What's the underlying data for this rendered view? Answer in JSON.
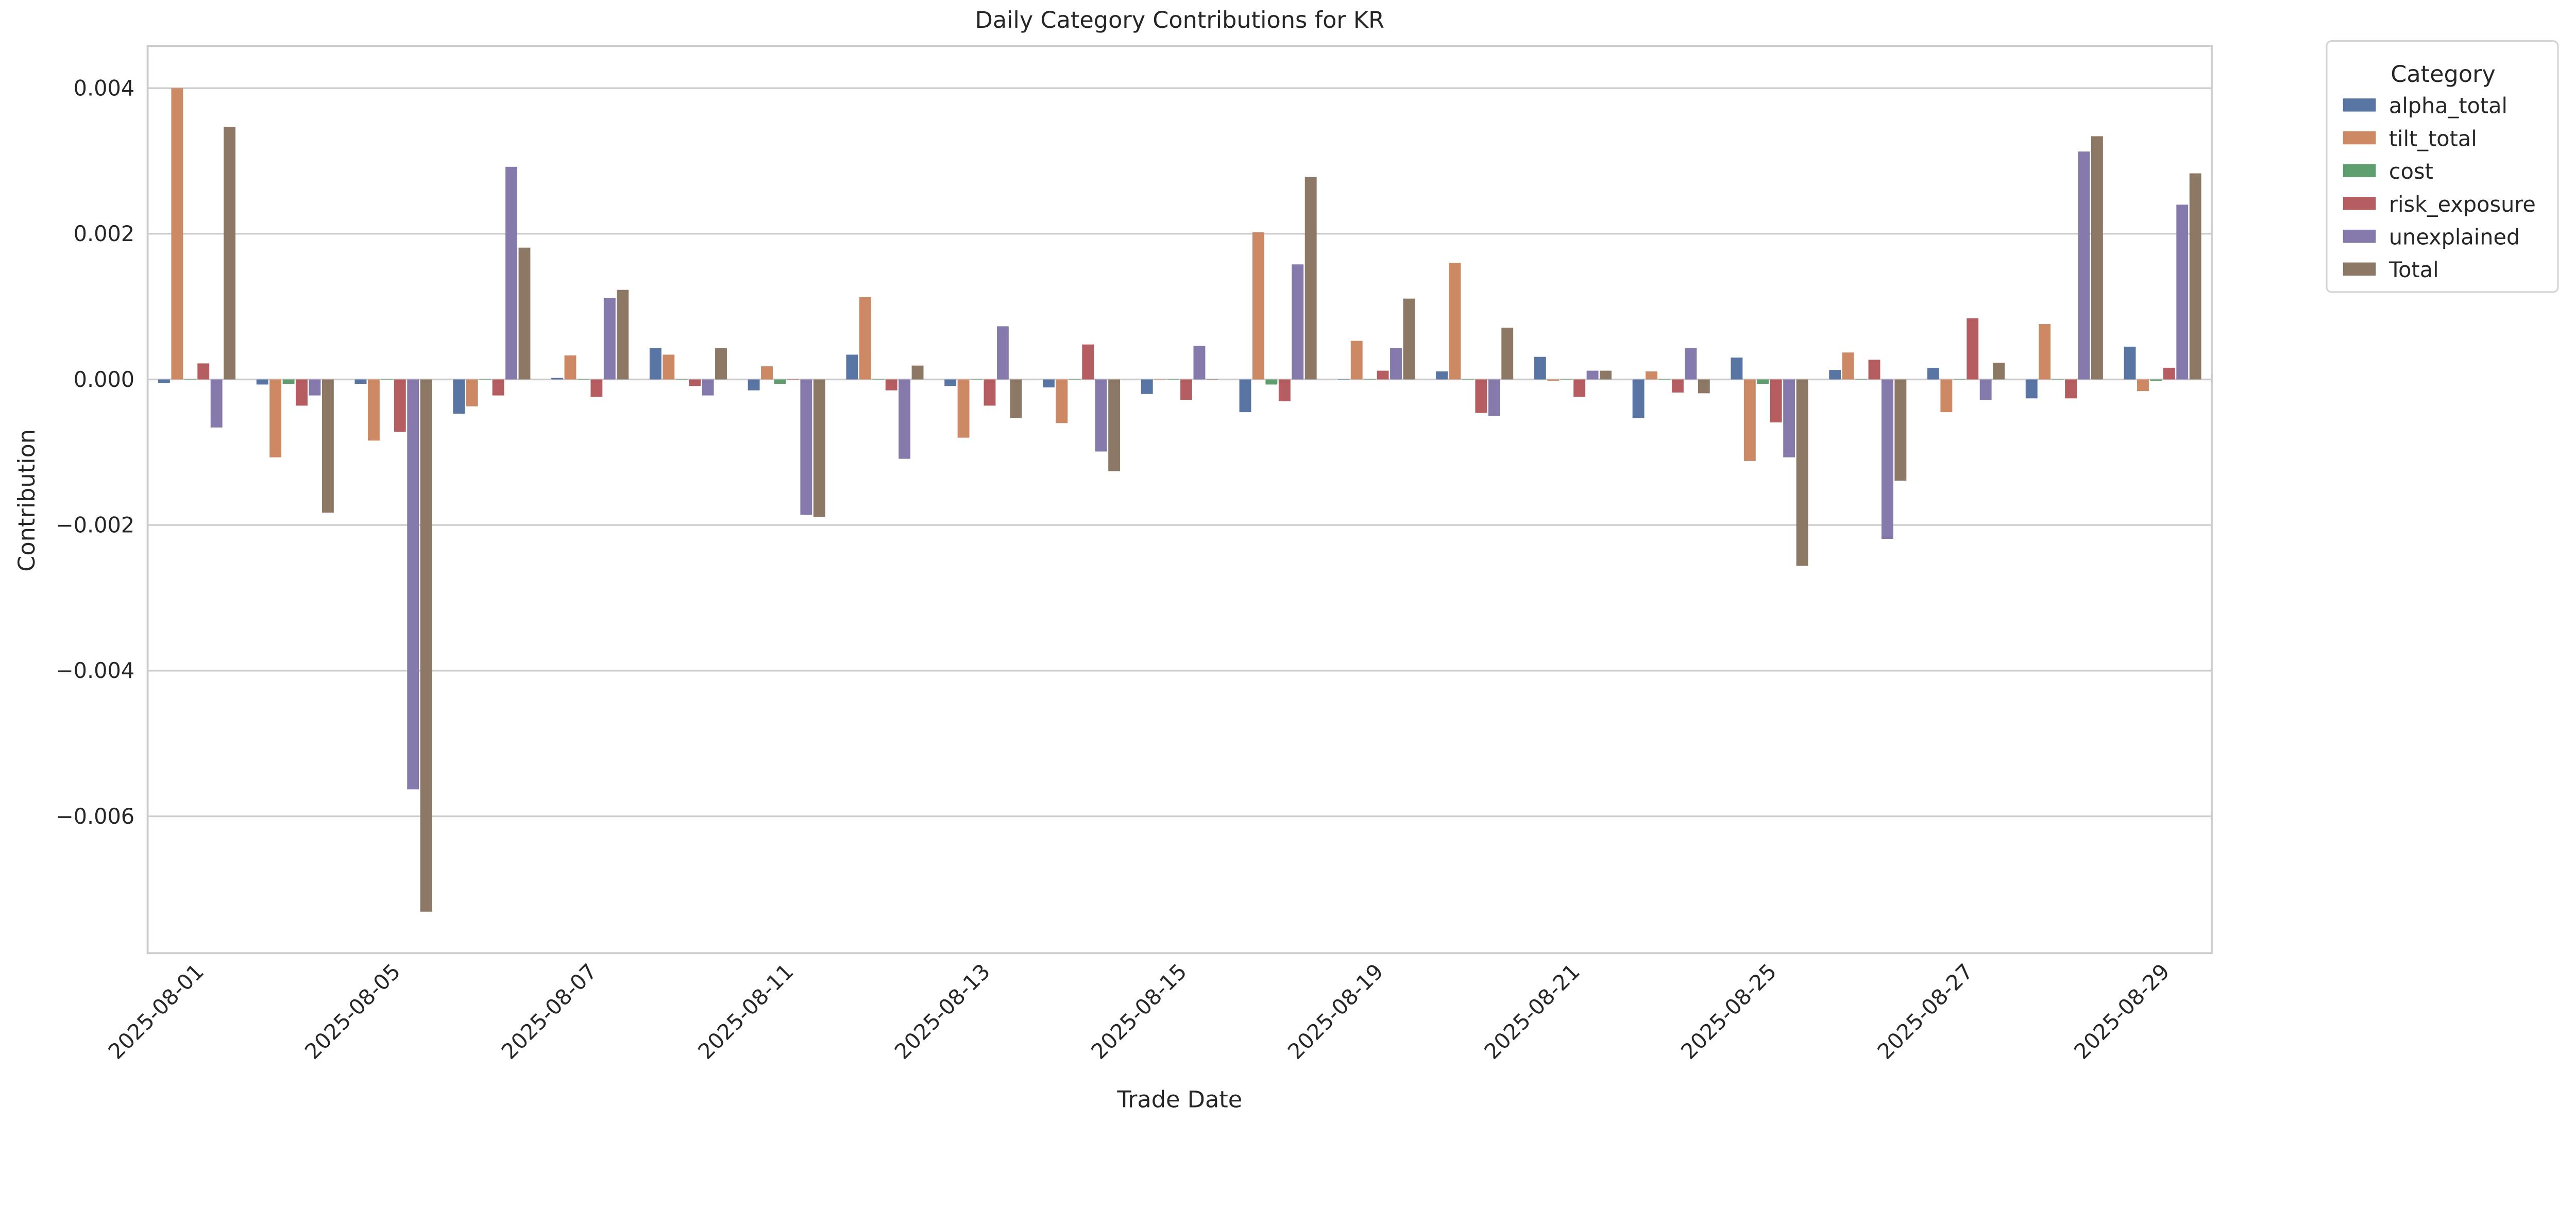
{
  "chart_data": {
    "type": "bar",
    "title": "Daily Category Contributions for KR",
    "xlabel": "Trade Date",
    "ylabel": "Contribution",
    "ylim": [
      -0.00788,
      0.00458
    ],
    "grid": true,
    "legend": {
      "title": "Category",
      "placement": "outside-top-right"
    },
    "categories": [
      "2025-08-01",
      "2025-08-04",
      "2025-08-05",
      "2025-08-06",
      "2025-08-07",
      "2025-08-08",
      "2025-08-11",
      "2025-08-12",
      "2025-08-13",
      "2025-08-14",
      "2025-08-15",
      "2025-08-18",
      "2025-08-19",
      "2025-08-20",
      "2025-08-21",
      "2025-08-22",
      "2025-08-25",
      "2025-08-26",
      "2025-08-27",
      "2025-08-28",
      "2025-08-29"
    ],
    "x_tick_labels": [
      "2025-08-01",
      "2025-08-05",
      "2025-08-07",
      "2025-08-11",
      "2025-08-13",
      "2025-08-15",
      "2025-08-19",
      "2025-08-21",
      "2025-08-25",
      "2025-08-27",
      "2025-08-29"
    ],
    "y_ticks": [
      -0.006,
      -0.004,
      -0.002,
      0.0,
      0.002,
      0.004
    ],
    "y_tick_labels": [
      "−0.006",
      "−0.004",
      "−0.002",
      "0.000",
      "0.002",
      "0.004"
    ],
    "series": [
      {
        "name": "alpha_total",
        "color": "#5975a4",
        "values": [
          -5e-05,
          -7e-05,
          -6e-05,
          -0.00047,
          2e-05,
          0.00043,
          -0.00015,
          0.00034,
          -9e-05,
          -0.00011,
          -0.0002,
          -0.00045,
          0.0,
          0.00011,
          0.00031,
          -0.00053,
          0.0003,
          0.00013,
          0.00016,
          -0.00026,
          0.00045
        ]
      },
      {
        "name": "tilt_total",
        "color": "#cc8963",
        "values": [
          0.004,
          -0.00107,
          -0.00084,
          -0.00037,
          0.00033,
          0.00034,
          0.00018,
          0.00113,
          -0.0008,
          -0.0006,
          0.0,
          0.00202,
          0.00053,
          0.0016,
          -2e-05,
          0.00011,
          -0.00112,
          0.00037,
          -0.00045,
          0.00076,
          -0.00016
        ]
      },
      {
        "name": "cost",
        "color": "#5f9e6e",
        "values": [
          0.0,
          -6e-05,
          0.0,
          0.0,
          0.0,
          0.0,
          -6e-05,
          0.0,
          0.0,
          0.0,
          0.0,
          -7e-05,
          0.0,
          0.0,
          0.0,
          0.0,
          -6e-05,
          0.0,
          0.0,
          0.0,
          -2e-05
        ]
      },
      {
        "name": "risk_exposure",
        "color": "#b55d60",
        "values": [
          0.00022,
          -0.00036,
          -0.00072,
          -0.00022,
          -0.00024,
          -9e-05,
          0.0,
          -0.00015,
          -0.00036,
          0.00048,
          -0.00028,
          -0.0003,
          0.00012,
          -0.00046,
          -0.00024,
          -0.00018,
          -0.00059,
          0.00027,
          0.00084,
          -0.00026,
          0.00016
        ]
      },
      {
        "name": "unexplained",
        "color": "#857aab",
        "values": [
          -0.00066,
          -0.00022,
          -0.00563,
          0.00292,
          0.00112,
          -0.00022,
          -0.00186,
          -0.00109,
          0.00073,
          -0.00099,
          0.00046,
          0.00158,
          0.00043,
          -0.0005,
          0.00012,
          0.00043,
          -0.00107,
          -0.00219,
          -0.00028,
          0.00313,
          0.0024
        ]
      },
      {
        "name": "Total",
        "color": "#8d7866",
        "values": [
          0.00347,
          -0.00183,
          -0.00731,
          0.00181,
          0.00123,
          0.00043,
          -0.00189,
          0.00019,
          -0.00053,
          -0.00126,
          0.0,
          0.00278,
          0.00111,
          0.00071,
          0.00012,
          -0.00019,
          -0.00256,
          -0.00139,
          0.00023,
          0.00334,
          0.00283
        ]
      }
    ]
  }
}
